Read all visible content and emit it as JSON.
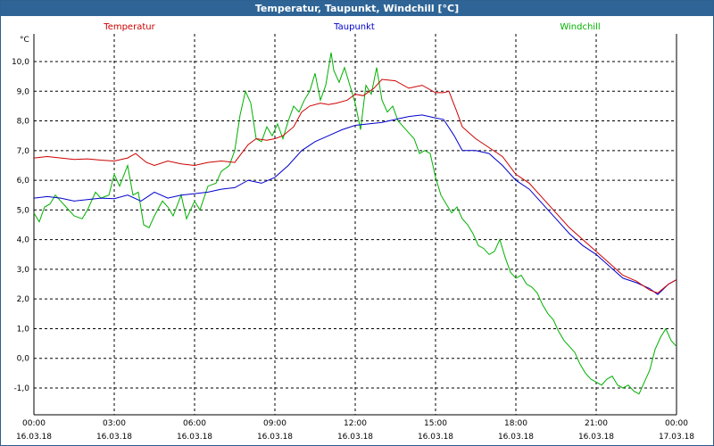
{
  "window": {
    "title": "Temperatur, Taupunkt, Windchill [°C]"
  },
  "chart_data": {
    "type": "line",
    "title": "Temperatur, Taupunkt, Windchill [°C]",
    "ylabel": "°C",
    "ylim": [
      -2,
      11
    ],
    "xlim": [
      0,
      24
    ],
    "grid": true,
    "y_ticks": [
      "10,0",
      "9,0",
      "8,0",
      "7,0",
      "6,0",
      "5,0",
      "4,0",
      "3,0",
      "2,0",
      "1,0",
      "0,0",
      "-1,0"
    ],
    "y_tick_values": [
      10,
      9,
      8,
      7,
      6,
      5,
      4,
      3,
      2,
      1,
      0,
      -1
    ],
    "x_ticks": [
      {
        "time": "00:00",
        "date": "16.03.18",
        "h": 0
      },
      {
        "time": "03:00",
        "date": "16.03.18",
        "h": 3
      },
      {
        "time": "06:00",
        "date": "16.03.18",
        "h": 6
      },
      {
        "time": "09:00",
        "date": "16.03.18",
        "h": 9
      },
      {
        "time": "12:00",
        "date": "16.03.18",
        "h": 12
      },
      {
        "time": "15:00",
        "date": "16.03.18",
        "h": 15
      },
      {
        "time": "18:00",
        "date": "16.03.18",
        "h": 18
      },
      {
        "time": "21:00",
        "date": "16.03.18",
        "h": 21
      },
      {
        "time": "00:00",
        "date": "17.03.18",
        "h": 24
      }
    ],
    "series": [
      {
        "name": "Temperatur",
        "color": "#cc0000",
        "x": [
          0,
          0.5,
          1,
          1.5,
          2,
          2.5,
          3,
          3.5,
          3.8,
          4.2,
          4.5,
          5,
          5.5,
          6,
          6.5,
          7,
          7.5,
          8,
          8.3,
          8.7,
          9,
          9.3,
          9.7,
          10,
          10.3,
          10.7,
          11,
          11.3,
          11.7,
          12,
          12.3,
          12.7,
          13,
          13.5,
          14,
          14.5,
          15,
          15.3,
          15.5,
          15.8,
          16,
          16.5,
          17,
          17.5,
          18,
          18.5,
          19,
          19.5,
          20,
          20.5,
          21,
          21.5,
          22,
          22.5,
          23,
          23.3,
          23.7,
          24
        ],
        "values": [
          6.75,
          6.8,
          6.75,
          6.7,
          6.72,
          6.68,
          6.65,
          6.75,
          6.9,
          6.6,
          6.5,
          6.65,
          6.55,
          6.5,
          6.6,
          6.65,
          6.6,
          7.2,
          7.4,
          7.35,
          7.4,
          7.5,
          7.8,
          8.3,
          8.5,
          8.6,
          8.55,
          8.6,
          8.7,
          8.9,
          8.85,
          9.1,
          9.4,
          9.35,
          9.1,
          9.2,
          8.95,
          8.95,
          9.0,
          8.3,
          7.8,
          7.4,
          7.1,
          6.8,
          6.2,
          5.9,
          5.4,
          4.9,
          4.4,
          4.0,
          3.6,
          3.2,
          2.8,
          2.6,
          2.3,
          2.2,
          2.5,
          2.65
        ]
      },
      {
        "name": "Taupunkt",
        "color": "#0000cc",
        "x": [
          0,
          0.5,
          1,
          1.5,
          2,
          2.5,
          3,
          3.5,
          4,
          4.5,
          5,
          5.5,
          6,
          6.5,
          7,
          7.5,
          8,
          8.5,
          9,
          9.5,
          10,
          10.5,
          11,
          11.5,
          12,
          12.5,
          13,
          13.5,
          14,
          14.5,
          15,
          15.3,
          15.7,
          16,
          16.5,
          17,
          17.5,
          18,
          18.5,
          19,
          19.5,
          20,
          20.5,
          21,
          21.5,
          22,
          22.5,
          23,
          23.3,
          23.7,
          24
        ],
        "values": [
          5.4,
          5.45,
          5.4,
          5.3,
          5.35,
          5.4,
          5.38,
          5.5,
          5.3,
          5.6,
          5.4,
          5.5,
          5.55,
          5.6,
          5.7,
          5.75,
          6.0,
          5.9,
          6.1,
          6.5,
          7.0,
          7.3,
          7.5,
          7.7,
          7.85,
          7.9,
          7.95,
          8.05,
          8.15,
          8.2,
          8.1,
          8.05,
          7.5,
          7.0,
          7.0,
          6.9,
          6.5,
          6.0,
          5.7,
          5.2,
          4.7,
          4.2,
          3.8,
          3.5,
          3.1,
          2.7,
          2.55,
          2.35,
          2.15,
          2.5,
          2.65
        ]
      },
      {
        "name": "Windchill",
        "color": "#00b000",
        "x": [
          0,
          0.2,
          0.4,
          0.6,
          0.8,
          1,
          1.2,
          1.5,
          1.8,
          2,
          2.3,
          2.5,
          2.8,
          3,
          3.2,
          3.5,
          3.7,
          3.9,
          4.1,
          4.3,
          4.5,
          4.8,
          5,
          5.2,
          5.5,
          5.7,
          6,
          6.2,
          6.5,
          6.8,
          7,
          7.3,
          7.5,
          7.7,
          7.9,
          8.1,
          8.3,
          8.5,
          8.7,
          8.9,
          9.1,
          9.3,
          9.5,
          9.7,
          9.9,
          10.1,
          10.3,
          10.5,
          10.7,
          10.9,
          11.1,
          11.2,
          11.4,
          11.6,
          11.8,
          12,
          12.2,
          12.4,
          12.6,
          12.8,
          13,
          13.2,
          13.4,
          13.6,
          13.8,
          14,
          14.2,
          14.4,
          14.6,
          14.8,
          15,
          15.2,
          15.4,
          15.6,
          15.8,
          16,
          16.2,
          16.4,
          16.6,
          16.8,
          17,
          17.2,
          17.4,
          17.6,
          17.8,
          18,
          18.2,
          18.4,
          18.6,
          18.8,
          19,
          19.2,
          19.4,
          19.6,
          19.8,
          20,
          20.2,
          20.4,
          20.6,
          20.8,
          21,
          21.2,
          21.4,
          21.6,
          21.8,
          22,
          22.2,
          22.4,
          22.6,
          22.8,
          23,
          23.2,
          23.4,
          23.6,
          23.8,
          24
        ],
        "values": [
          4.9,
          4.6,
          5.1,
          5.2,
          5.5,
          5.3,
          5.1,
          4.8,
          4.7,
          5.0,
          5.6,
          5.4,
          5.5,
          6.2,
          5.8,
          6.5,
          5.5,
          5.6,
          4.5,
          4.4,
          4.8,
          5.3,
          5.1,
          4.8,
          5.5,
          4.7,
          5.3,
          5.0,
          5.8,
          5.9,
          6.3,
          6.5,
          7.0,
          8.2,
          9.0,
          8.6,
          7.4,
          7.3,
          7.8,
          7.5,
          7.9,
          7.4,
          8.0,
          8.5,
          8.3,
          8.7,
          9.0,
          9.6,
          8.7,
          9.2,
          10.3,
          9.7,
          9.3,
          9.8,
          9.2,
          8.6,
          7.7,
          9.2,
          8.9,
          9.8,
          8.7,
          8.3,
          8.5,
          8.0,
          7.8,
          7.6,
          7.4,
          6.9,
          7.0,
          6.9,
          6.1,
          5.5,
          5.2,
          4.9,
          5.1,
          4.7,
          4.5,
          4.2,
          3.8,
          3.7,
          3.5,
          3.6,
          4.0,
          3.4,
          2.9,
          2.7,
          2.8,
          2.5,
          2.4,
          2.2,
          1.8,
          1.5,
          1.3,
          0.9,
          0.6,
          0.4,
          0.2,
          -0.2,
          -0.5,
          -0.7,
          -0.8,
          -0.9,
          -0.7,
          -0.6,
          -0.9,
          -1.0,
          -0.9,
          -1.1,
          -1.2,
          -0.8,
          -0.4,
          0.3,
          0.7,
          1.0,
          0.6,
          0.4
        ]
      }
    ]
  }
}
